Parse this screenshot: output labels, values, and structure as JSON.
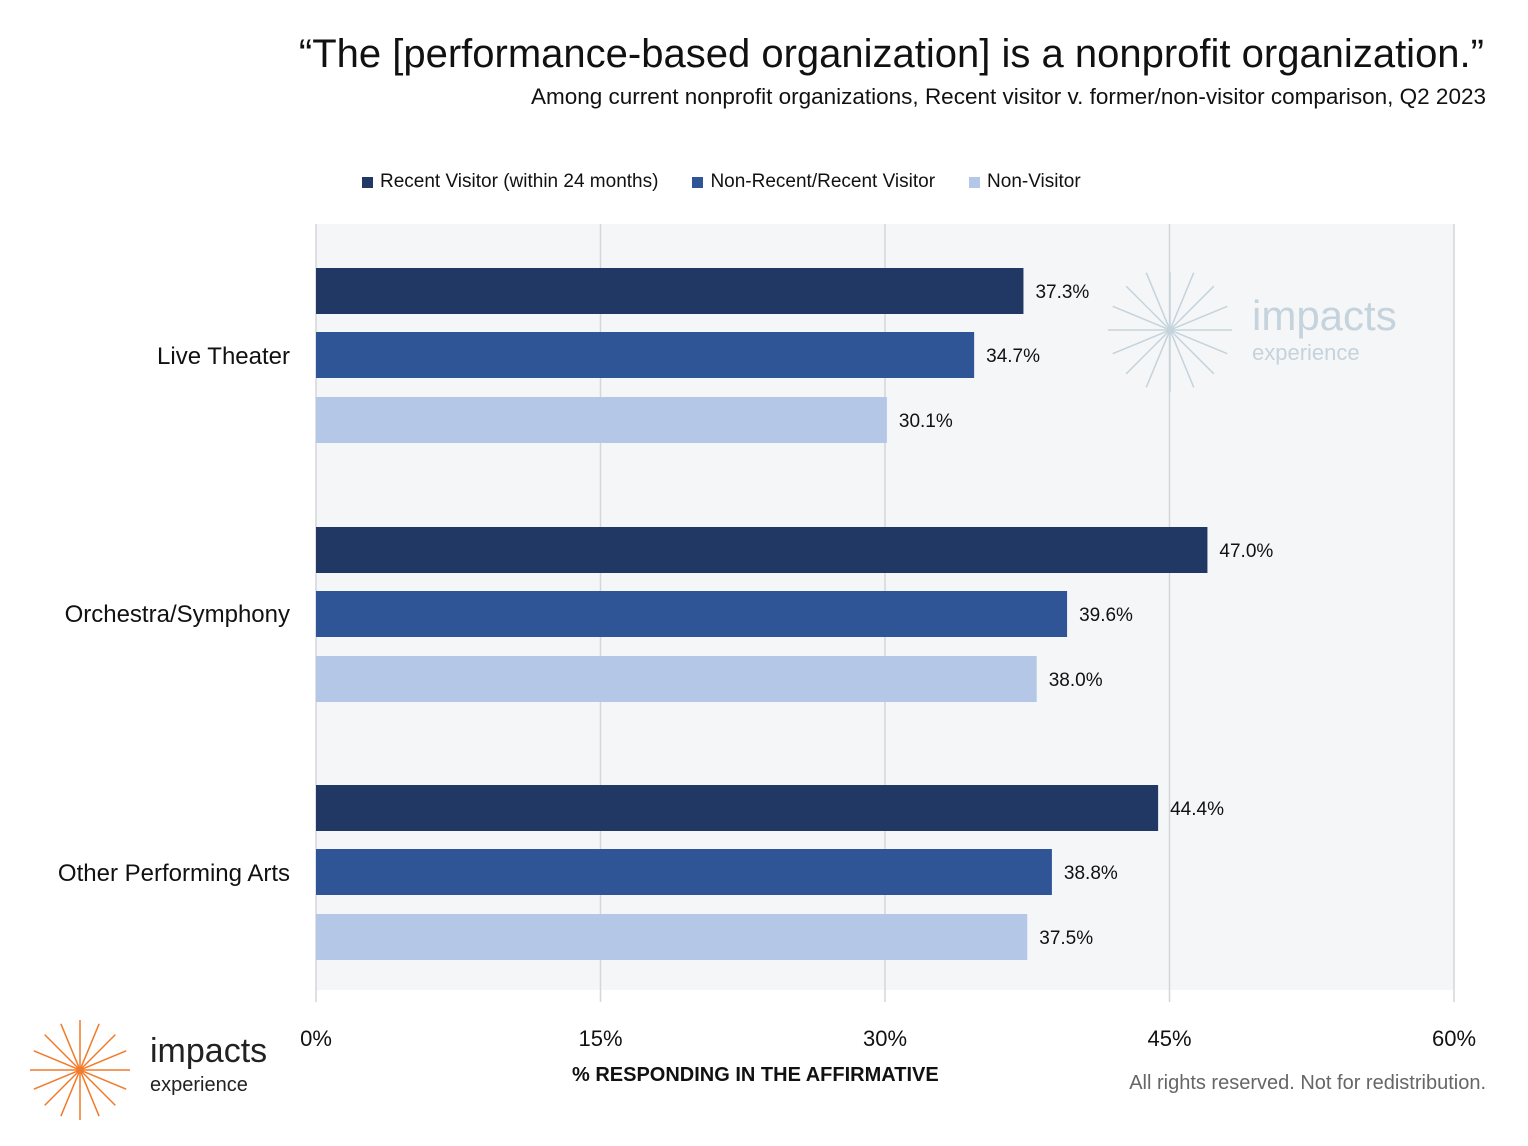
{
  "title": "“The [performance-based organization] is a nonprofit organization.”",
  "subtitle": "Among current nonprofit organizations, Recent visitor v. former/non-visitor comparison, Q2 2023",
  "footer": "All rights reserved. Not for redistribution.",
  "logo": {
    "word": "impacts",
    "sub": "experience",
    "accent_color": "#f07b2b"
  },
  "watermark": {
    "word": "impacts",
    "sub": "experience",
    "color": "#c5d3dc"
  },
  "chart_data": {
    "type": "bar",
    "orientation": "horizontal",
    "title": "“The [performance-based organization] is a nonprofit organization.”",
    "subtitle": "Among current nonprofit organizations, Recent visitor v. former/non-visitor comparison, Q2 2023",
    "xlabel": "% RESPONDING IN THE AFFIRMATIVE",
    "ylabel": "",
    "categories": [
      "Live Theater",
      "Orchestra/Symphony",
      "Other Performing Arts"
    ],
    "series": [
      {
        "name": "Recent Visitor (within 24 months)",
        "color": "#213865",
        "values": [
          37.3,
          47.0,
          44.4
        ],
        "labels": [
          "37.3%",
          "47.0%",
          "44.4%"
        ]
      },
      {
        "name": "Non-Recent/Recent Visitor",
        "color": "#2f5597",
        "values": [
          34.7,
          39.6,
          38.8
        ],
        "labels": [
          "34.7%",
          "39.6%",
          "38.8%"
        ]
      },
      {
        "name": "Non-Visitor",
        "color": "#b4c7e7",
        "values": [
          30.1,
          38.0,
          37.5
        ],
        "labels": [
          "30.1%",
          "38.0%",
          "37.5%"
        ]
      }
    ],
    "xlim": [
      0,
      60
    ],
    "xticks": [
      0,
      15,
      30,
      45,
      60
    ],
    "xtick_labels": [
      "0%",
      "15%",
      "30%",
      "45%",
      "60%"
    ],
    "grid": true,
    "legend_position": "top",
    "plot_background": "#f5f6f8"
  }
}
